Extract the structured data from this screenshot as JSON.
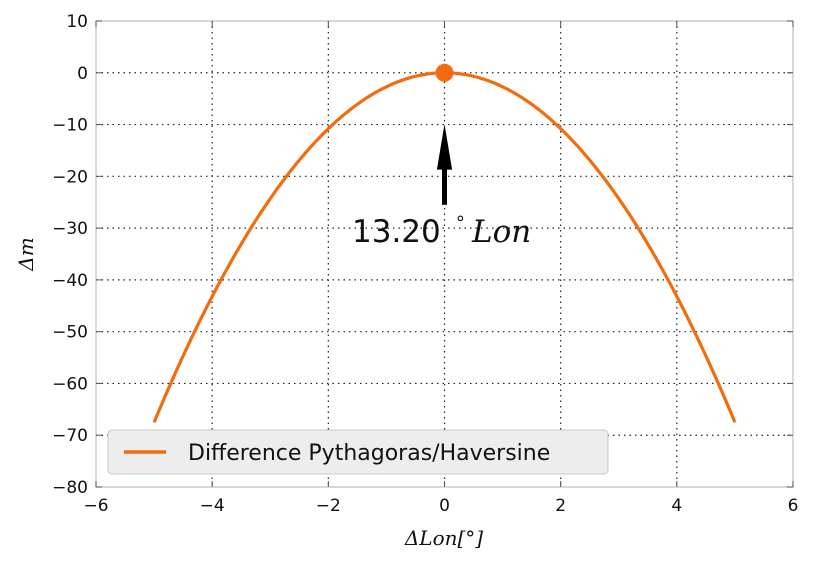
{
  "chart_data": {
    "type": "line",
    "xlabel": "ΔLon[°]",
    "ylabel": "Δm",
    "xlim": [
      -6,
      6
    ],
    "ylim": [
      -80,
      10
    ],
    "xticks": [
      -6,
      -4,
      -2,
      0,
      2,
      4,
      6
    ],
    "yticks": [
      10,
      0,
      -10,
      -20,
      -30,
      -40,
      -50,
      -60,
      -70,
      -80
    ],
    "xtick_labels": [
      "−6",
      "−4",
      "−2",
      "0",
      "2",
      "4",
      "6"
    ],
    "ytick_labels": [
      "10",
      "0",
      "−10",
      "−20",
      "−30",
      "−40",
      "−50",
      "−60",
      "−70",
      "−80"
    ],
    "grid": true,
    "legend_placement": "lower-left",
    "series": [
      {
        "name": "Difference Pythagoras/Haversine",
        "color": "#f36b0c",
        "x": [
          -5.0,
          -4.5,
          -4.0,
          -3.5,
          -3.0,
          -2.5,
          -2.0,
          -1.5,
          -1.0,
          -0.5,
          0.0,
          0.5,
          1.0,
          1.5,
          2.0,
          2.5,
          3.0,
          3.5,
          4.0,
          4.5,
          5.0
        ],
        "y": [
          -67.5,
          -49.2,
          -34.6,
          -23.2,
          -14.6,
          -8.4,
          -4.3,
          -1.8,
          -0.5,
          -0.1,
          0.0,
          -0.1,
          -0.5,
          -1.8,
          -4.3,
          -8.4,
          -14.6,
          -23.2,
          -34.6,
          -49.2,
          -67.5
        ]
      }
    ],
    "marker": {
      "x": 0,
      "y": 0,
      "color": "#f36b0c"
    },
    "annotation": {
      "number": "13.20",
      "degree": "∘",
      "unit": "Lon",
      "arrow_from": [
        0,
        -25.5
      ],
      "arrow_to": [
        0,
        -10.5
      ]
    }
  }
}
